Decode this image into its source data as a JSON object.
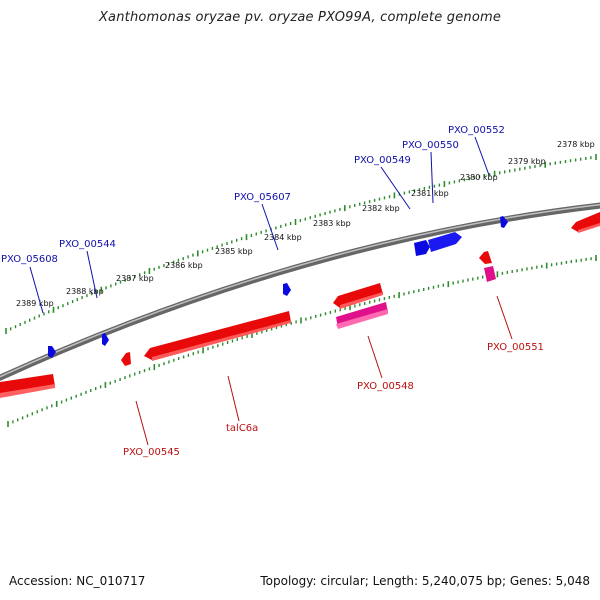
{
  "title": "Xanthomonas oryzae pv. oryzae PXO99A, complete genome",
  "footer": {
    "accession": "Accession: NC_010717",
    "summary": "Topology: circular; Length: 5,240,075 bp; Genes: 5,048"
  },
  "colors": {
    "backbone": "#808080",
    "tick": "#2e8b2e",
    "forward_label": "#1010aa",
    "reverse_label": "#bb1010",
    "forward_gene": "#0a0ae0",
    "reverse_gene": "#e80a0a",
    "reverse_gene_alt": "#e0108a"
  },
  "kbp_labels": [
    "2389 kbp",
    "2388 kbp",
    "2387 kbp",
    "2386 kbp",
    "2385 kbp",
    "2384 kbp",
    "2383 kbp",
    "2382 kbp",
    "2381 kbp",
    "2380 kbp",
    "2379 kbp",
    "2378 kbp"
  ],
  "forward_labels": [
    "PXO_05608",
    "PXO_00544",
    "PXO_05607",
    "PXO_00549",
    "PXO_00550",
    "PXO_00552"
  ],
  "reverse_labels": [
    "PXO_00545",
    "talC6a",
    "PXO_00548",
    "PXO_00551"
  ]
}
